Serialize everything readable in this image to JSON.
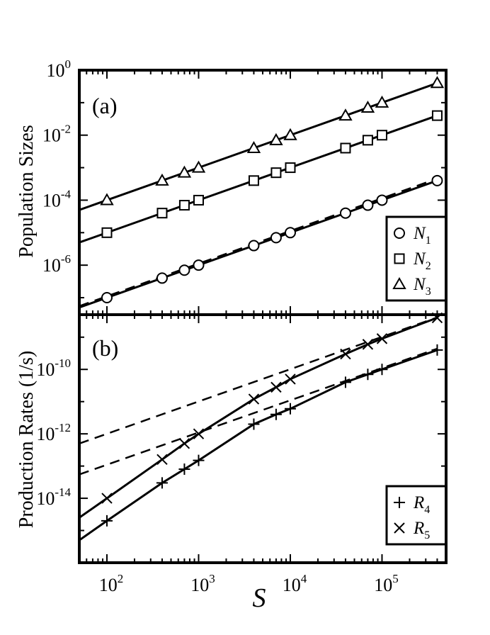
{
  "chart_data": [
    {
      "type": "scatter",
      "panel_label": "(a)",
      "ylabel": "Population Sizes",
      "xscale": "log",
      "yscale": "log",
      "xlim": [
        50,
        500000
      ],
      "ylim": [
        3e-08,
        1
      ],
      "yticks": [
        {
          "value": 1e-06,
          "base": "10",
          "exp": "-6"
        },
        {
          "value": 0.0001,
          "base": "10",
          "exp": "-4"
        },
        {
          "value": 0.01,
          "base": "10",
          "exp": "-2"
        },
        {
          "value": 1,
          "base": "10",
          "exp": "0"
        }
      ],
      "legend": {
        "position": "bottom-right",
        "entries": [
          {
            "marker": "circle",
            "base": "N",
            "sub": "1"
          },
          {
            "marker": "square",
            "base": "N",
            "sub": "2"
          },
          {
            "marker": "triangle",
            "base": "N",
            "sub": "3"
          }
        ]
      },
      "series": [
        {
          "name": "N1",
          "marker": "circle",
          "x": [
            100,
            400,
            700,
            1000,
            4000,
            7000,
            10000,
            40000,
            70000,
            100000,
            400000
          ],
          "y": [
            1e-07,
            4e-07,
            7e-07,
            1e-06,
            4e-06,
            7e-06,
            1e-05,
            4e-05,
            7e-05,
            0.0001,
            0.0004
          ],
          "fit_solid": {
            "x": [
              50,
              400000
            ],
            "y": [
              5e-08,
              0.0004
            ]
          },
          "fit_dashed": {
            "x": [
              50,
              400000
            ],
            "y": [
              5.5e-08,
              0.00046
            ]
          }
        },
        {
          "name": "N2",
          "marker": "square",
          "x": [
            100,
            400,
            700,
            1000,
            4000,
            7000,
            10000,
            40000,
            70000,
            100000,
            400000
          ],
          "y": [
            1e-05,
            4e-05,
            7e-05,
            0.0001,
            0.0004,
            0.0007,
            0.001,
            0.004,
            0.007,
            0.01,
            0.04
          ],
          "fit_solid": {
            "x": [
              50,
              400000
            ],
            "y": [
              5e-06,
              0.04
            ]
          }
        },
        {
          "name": "N3",
          "marker": "triangle",
          "x": [
            100,
            400,
            700,
            1000,
            4000,
            7000,
            10000,
            40000,
            70000,
            100000,
            400000
          ],
          "y": [
            0.0001,
            0.0004,
            0.0007,
            0.001,
            0.004,
            0.007,
            0.01,
            0.04,
            0.07,
            0.1,
            0.4
          ],
          "fit_solid": {
            "x": [
              50,
              400000
            ],
            "y": [
              5e-05,
              0.4
            ]
          }
        }
      ]
    },
    {
      "type": "line",
      "panel_label": "(b)",
      "ylabel": "Production Rates (1/s)",
      "xlabel": "S",
      "xscale": "log",
      "yscale": "log",
      "xlim": [
        50,
        500000
      ],
      "ylim": [
        1e-16,
        5e-09
      ],
      "xticks": [
        {
          "value": 100,
          "base": "10",
          "exp": "2"
        },
        {
          "value": 1000,
          "base": "10",
          "exp": "3"
        },
        {
          "value": 10000,
          "base": "10",
          "exp": "4"
        },
        {
          "value": 100000,
          "base": "10",
          "exp": "5"
        }
      ],
      "yticks": [
        {
          "value": 1e-14,
          "base": "10",
          "exp": "-14"
        },
        {
          "value": 1e-12,
          "base": "10",
          "exp": "-12"
        },
        {
          "value": 1e-10,
          "base": "10",
          "exp": "-10"
        }
      ],
      "legend": {
        "position": "bottom-right",
        "entries": [
          {
            "marker": "plus",
            "base": "R",
            "sub": "4"
          },
          {
            "marker": "cross",
            "base": "R",
            "sub": "5"
          }
        ]
      },
      "series": [
        {
          "name": "R4",
          "marker": "plus",
          "x": [
            100,
            400,
            700,
            1000,
            4000,
            7000,
            10000,
            40000,
            70000,
            100000,
            400000
          ],
          "y": [
            2e-15,
            3e-14,
            8e-14,
            1.5e-13,
            2e-12,
            4e-12,
            6e-12,
            4e-11,
            7e-11,
            1e-10,
            4e-10
          ],
          "line_solid": {
            "x": [
              50,
              100,
              400,
              700,
              1000,
              4000,
              7000,
              10000,
              40000,
              70000,
              100000,
              400000
            ],
            "y": [
              5e-16,
              2e-15,
              3e-14,
              8e-14,
              1.5e-13,
              2e-12,
              4e-12,
              6e-12,
              4e-11,
              7e-11,
              1e-10,
              4e-10
            ]
          },
          "fit_dashed": {
            "x": [
              50,
              400000
            ],
            "y": [
              5.5e-14,
              4.4e-10
            ]
          }
        },
        {
          "name": "R5",
          "marker": "cross",
          "x": [
            100,
            400,
            700,
            1000,
            4000,
            7000,
            10000,
            40000,
            70000,
            100000,
            400000
          ],
          "y": [
            1e-14,
            1.6e-13,
            5e-13,
            1e-12,
            1.2e-11,
            2.8e-11,
            5e-11,
            3e-10,
            6e-10,
            9e-10,
            4e-09
          ],
          "line_solid": {
            "x": [
              50,
              100,
              400,
              700,
              1000,
              4000,
              7000,
              10000,
              40000,
              70000,
              100000,
              400000
            ],
            "y": [
              2.5e-15,
              1e-14,
              1.6e-13,
              5e-13,
              1e-12,
              1.2e-11,
              2.8e-11,
              5e-11,
              3e-10,
              6e-10,
              9e-10,
              4e-09
            ]
          },
          "fit_dashed": {
            "x": [
              50,
              400000
            ],
            "y": [
              5e-13,
              4.1e-09
            ]
          }
        }
      ]
    }
  ]
}
